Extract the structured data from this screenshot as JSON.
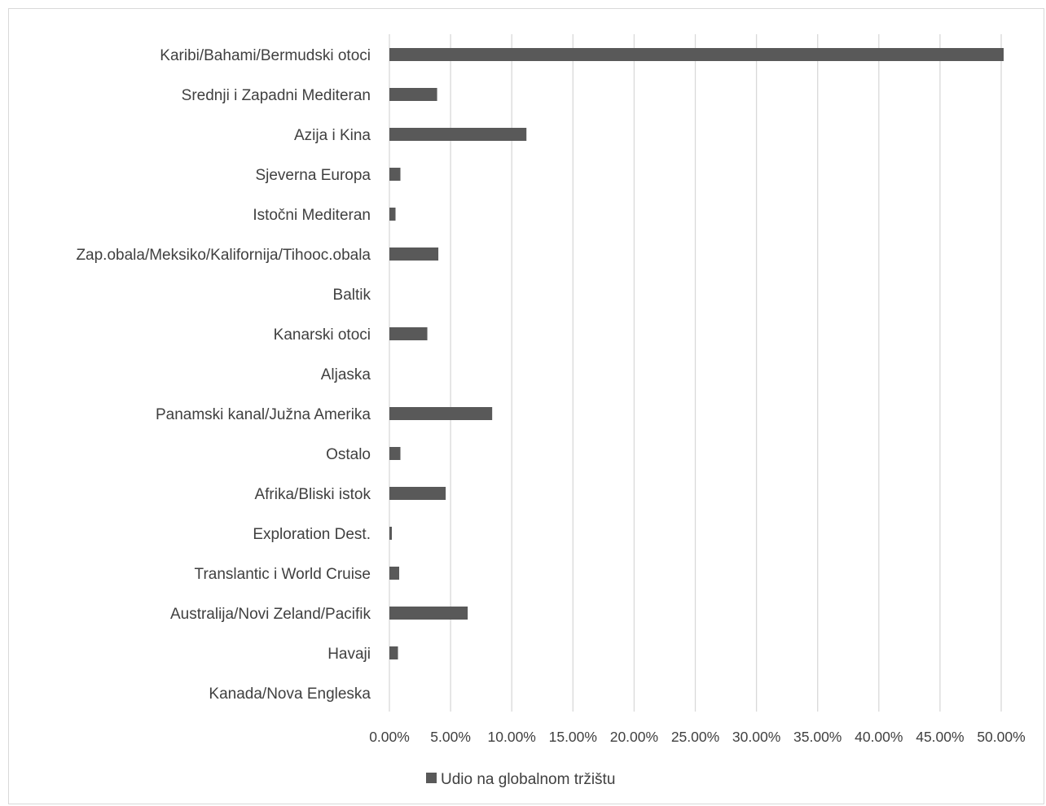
{
  "chart_data": {
    "type": "bar",
    "orientation": "horizontal",
    "title": "",
    "xlabel": "",
    "ylabel": "",
    "categories": [
      "Karibi/Bahami/Bermudski otoci",
      "Srednji i Zapadni Mediteran",
      "Azija i Kina",
      "Sjeverna Europa",
      "Istočni Mediteran",
      "Zap.obala/Meksiko/Kalifornija/Tihooc.obala",
      "Baltik",
      "Kanarski otoci",
      "Aljaska",
      "Panamski kanal/Južna Amerika",
      "Ostalo",
      "Afrika/Bliski istok",
      "Exploration Dest.",
      "Translantic i World Cruise",
      "Australija/Novi Zeland/Pacifik",
      "Havaji",
      "Kanada/Nova Engleska"
    ],
    "series": [
      {
        "name": "Udio na globalnom tržištu",
        "color": "#595959",
        "values": [
          50.2,
          3.9,
          11.2,
          0.9,
          0.5,
          4.0,
          0.0,
          3.1,
          0.0,
          8.4,
          0.9,
          4.6,
          0.2,
          0.8,
          6.4,
          0.7,
          0.0
        ]
      }
    ],
    "xlim": [
      0,
      50
    ],
    "xticks": [
      "0.00%",
      "5.00%",
      "10.00%",
      "15.00%",
      "20.00%",
      "25.00%",
      "30.00%",
      "35.00%",
      "40.00%",
      "45.00%",
      "50.00%"
    ],
    "grid": "vertical",
    "legend": {
      "position": "bottom",
      "label": "Udio na globalnom tržištu"
    }
  }
}
